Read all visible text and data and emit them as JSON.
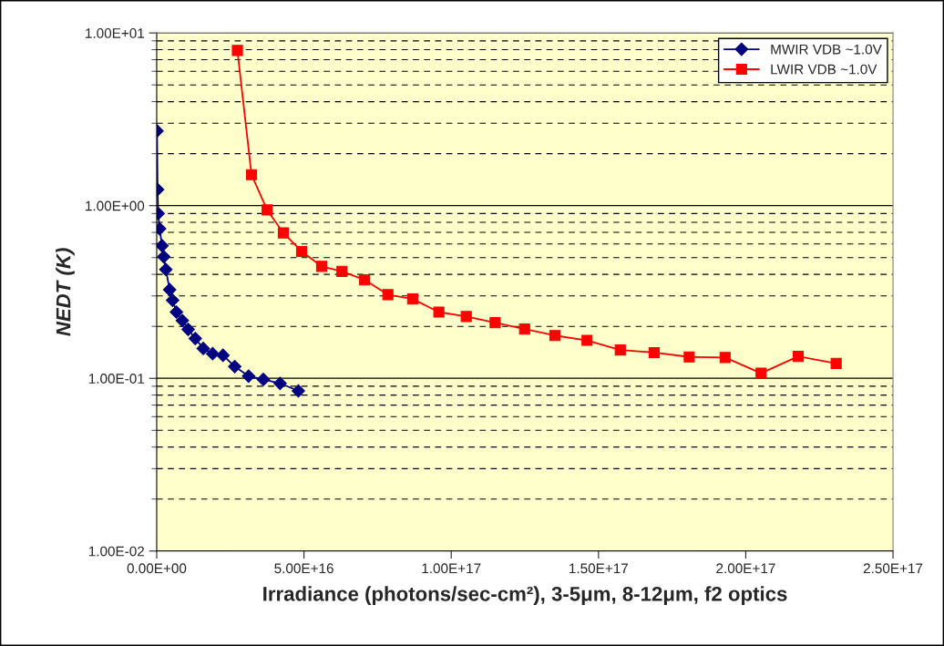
{
  "chart_data": {
    "type": "line",
    "xlabel": "Irradiance (photons/sec-cm²), 3-5μm, 8-12μm, f2 optics",
    "ylabel": "NEDT (K)",
    "log": "y",
    "grid": "y",
    "legend": "top right",
    "line_style": "solid",
    "xlim": [
      0,
      2.5e+17
    ],
    "xticks": [
      {
        "value": 0,
        "label": "0.00E+00"
      },
      {
        "value": 5e+16,
        "label": "5.00E+16"
      },
      {
        "value": 1e+17,
        "label": "1.00E+17"
      },
      {
        "value": 1.5e+17,
        "label": "1.50E+17"
      },
      {
        "value": 2e+17,
        "label": "2.00E+17"
      },
      {
        "value": 2.5e+17,
        "label": "2.50E+17"
      }
    ],
    "ylim": [
      0.01,
      10
    ],
    "yticks": [
      {
        "value": 0.01,
        "label": "1.00E-02"
      },
      {
        "value": 0.1,
        "label": "1.00E-01"
      },
      {
        "value": 1,
        "label": "1.00E+00"
      },
      {
        "value": 10,
        "label": "1.00E+01"
      }
    ],
    "series": [
      {
        "name": "MWIR VDB ~1.0V",
        "color": "#000080",
        "marker": "diamond",
        "x": [
          100000000000000.0,
          300000000000000.0,
          500000000000000.0,
          1000000000000000.0,
          1800000000000000.0,
          2400000000000000.0,
          3100000000000000.0,
          4400000000000000.0,
          5400000000000000.0,
          6700000000000000.0,
          8700000000000000.0,
          1.07e+16,
          1.31e+16,
          1.58e+16,
          1.9e+16,
          2.25e+16,
          2.65e+16,
          3.12e+16,
          3.62e+16,
          4.19e+16,
          4.81e+16
        ],
        "values": [
          2.71,
          1.24,
          0.9,
          0.735,
          0.586,
          0.506,
          0.427,
          0.326,
          0.283,
          0.242,
          0.216,
          0.192,
          0.17,
          0.149,
          0.139,
          0.136,
          0.117,
          0.103,
          0.0985,
          0.0935,
          0.0846
        ]
      },
      {
        "name": "LWIR VDB ~1.0V",
        "color": "#ff0000",
        "marker": "square",
        "x": [
          2.74e+16,
          3.22e+16,
          3.75e+16,
          4.3e+16,
          4.92e+16,
          5.6e+16,
          6.29e+16,
          7.06e+16,
          7.85e+16,
          8.69e+16,
          9.58e+16,
          1.051e+17,
          1.149e+17,
          1.249e+17,
          1.352e+17,
          1.461e+17,
          1.574e+17,
          1.689e+17,
          1.808e+17,
          1.93e+17,
          2.052e+17,
          2.178e+17,
          2.307e+17
        ],
        "values": [
          7.92,
          1.51,
          0.944,
          0.695,
          0.543,
          0.445,
          0.416,
          0.372,
          0.305,
          0.288,
          0.242,
          0.228,
          0.21,
          0.193,
          0.177,
          0.166,
          0.146,
          0.141,
          0.133,
          0.132,
          0.107,
          0.134,
          0.122
        ]
      }
    ]
  }
}
